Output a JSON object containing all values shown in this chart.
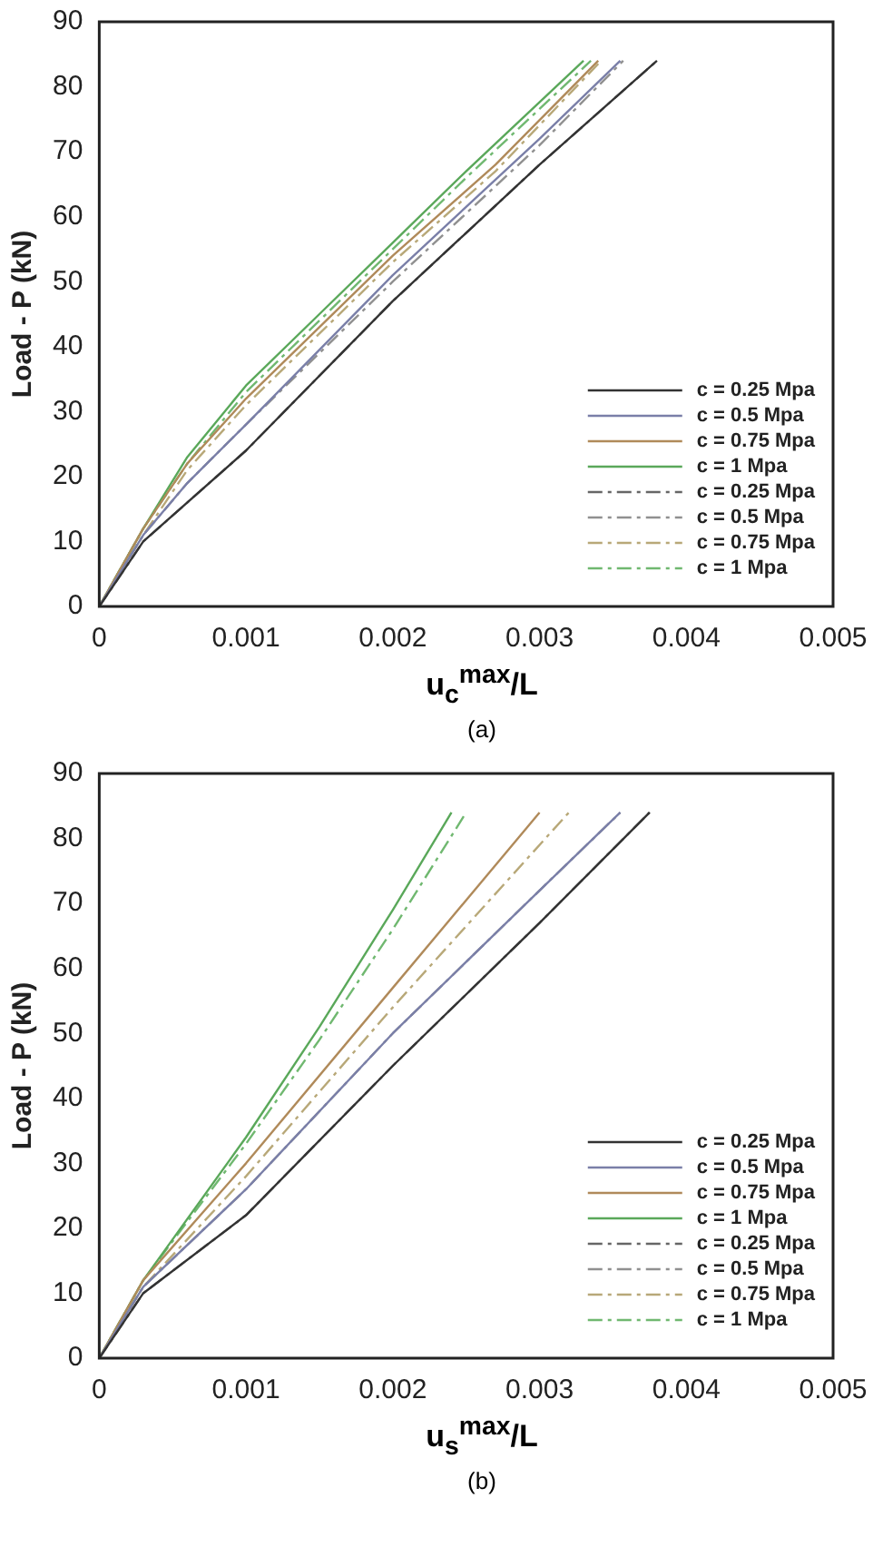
{
  "chart_data": [
    {
      "type": "line",
      "xlabel": "u$_{c}$$^{max}$/L",
      "ylabel": "Load - P (kN)",
      "annotations": [
        "(a)"
      ],
      "xlim": [
        0,
        0.005
      ],
      "ylim": [
        0,
        90
      ],
      "xticks": [
        0,
        0.001,
        0.002,
        0.003,
        0.004,
        0.005
      ],
      "yticks": [
        0,
        10,
        20,
        30,
        40,
        50,
        60,
        70,
        80,
        90
      ],
      "grid": false,
      "legend": "bottom right",
      "marker": "none",
      "series": [
        {
          "name": "c = 0.25 Mpa",
          "color": "#333333",
          "line_style": "solid",
          "x": [
            0,
            0.0003,
            0.001,
            0.002,
            0.003,
            0.0038
          ],
          "values": [
            0,
            10,
            24,
            47,
            68,
            84
          ]
        },
        {
          "name": "c = 0.5 Mpa",
          "color": "#7a7fa8",
          "line_style": "solid",
          "x": [
            0,
            0.0003,
            0.0006,
            0.001,
            0.002,
            0.003,
            0.00355
          ],
          "values": [
            0,
            11,
            19,
            28,
            51,
            72,
            84
          ]
        },
        {
          "name": "c = 0.75 Mpa",
          "color": "#b08a5a",
          "line_style": "solid",
          "x": [
            0,
            0.0003,
            0.0006,
            0.001,
            0.0015,
            0.002,
            0.0027,
            0.0034
          ],
          "values": [
            0,
            12,
            22,
            32,
            43,
            54,
            68,
            84
          ]
        },
        {
          "name": "c = 1 Mpa",
          "color": "#5aa85a",
          "line_style": "solid",
          "x": [
            0,
            0.0003,
            0.0006,
            0.001,
            0.0015,
            0.002,
            0.0025,
            0.0033
          ],
          "values": [
            0,
            12,
            23,
            34,
            45,
            56,
            67,
            84
          ]
        },
        {
          "name": "c = 0.25 Mpa",
          "color": "#666666",
          "line_style": "dashed",
          "x": [
            0,
            0.0003,
            0.001,
            0.002,
            0.003,
            0.0038
          ],
          "values": [
            0,
            10,
            24,
            47,
            68,
            84
          ]
        },
        {
          "name": "c = 0.5 Mpa",
          "color": "#909090",
          "line_style": "dashed",
          "x": [
            0,
            0.0003,
            0.0006,
            0.001,
            0.002,
            0.003,
            0.00357
          ],
          "values": [
            0,
            11,
            19,
            28,
            50,
            71,
            84
          ]
        },
        {
          "name": "c = 0.75 Mpa",
          "color": "#b8a878",
          "line_style": "dashed",
          "x": [
            0,
            0.0003,
            0.0006,
            0.001,
            0.0015,
            0.002,
            0.0027,
            0.00342
          ],
          "values": [
            0,
            11,
            21,
            31,
            42,
            53,
            67,
            84
          ]
        },
        {
          "name": "c = 1 Mpa",
          "color": "#70b870",
          "line_style": "dashed",
          "x": [
            0,
            0.0003,
            0.0006,
            0.001,
            0.0015,
            0.002,
            0.0025,
            0.00335
          ],
          "values": [
            0,
            12,
            22,
            33,
            44,
            55,
            66,
            84
          ]
        }
      ]
    },
    {
      "type": "line",
      "xlabel": "u$_{s}$$^{max}$/L",
      "ylabel": "Load - P (kN)",
      "annotations": [
        "(b)"
      ],
      "xlim": [
        0,
        0.005
      ],
      "ylim": [
        0,
        90
      ],
      "xticks": [
        0,
        0.001,
        0.002,
        0.003,
        0.004,
        0.005
      ],
      "yticks": [
        0,
        10,
        20,
        30,
        40,
        50,
        60,
        70,
        80,
        90
      ],
      "grid": false,
      "legend": "bottom right",
      "marker": "none",
      "series": [
        {
          "name": "c = 0.25 Mpa",
          "color": "#333333",
          "line_style": "solid",
          "x": [
            0,
            0.0003,
            0.001,
            0.002,
            0.003,
            0.00375
          ],
          "values": [
            0,
            10,
            22,
            45,
            67,
            84
          ]
        },
        {
          "name": "c = 0.5 Mpa",
          "color": "#7a7fa8",
          "line_style": "solid",
          "x": [
            0,
            0.0003,
            0.001,
            0.002,
            0.003,
            0.00355
          ],
          "values": [
            0,
            11,
            26,
            50,
            72,
            84
          ]
        },
        {
          "name": "c = 0.75 Mpa",
          "color": "#b08a5a",
          "line_style": "solid",
          "x": [
            0,
            0.0003,
            0.001,
            0.002,
            0.003
          ],
          "values": [
            0,
            12,
            30,
            57,
            84
          ]
        },
        {
          "name": "c = 1 Mpa",
          "color": "#5aa85a",
          "line_style": "solid",
          "x": [
            0,
            0.0003,
            0.001,
            0.0015,
            0.002,
            0.0024
          ],
          "values": [
            0,
            12,
            34,
            51,
            69,
            84
          ]
        },
        {
          "name": "c = 0.25 Mpa",
          "color": "#666666",
          "line_style": "dashed",
          "x": [
            0,
            0.0003,
            0.001,
            0.002,
            0.003,
            0.00375
          ],
          "values": [
            0,
            10,
            22,
            45,
            67,
            84
          ]
        },
        {
          "name": "c = 0.5 Mpa",
          "color": "#909090",
          "line_style": "dashed",
          "x": [
            0,
            0.0003,
            0.001,
            0.002,
            0.003,
            0.00355
          ],
          "values": [
            0,
            11,
            26,
            50,
            72,
            84
          ]
        },
        {
          "name": "c = 0.75 Mpa",
          "color": "#b8a878",
          "line_style": "dashed",
          "x": [
            0,
            0.0003,
            0.001,
            0.002,
            0.0032
          ],
          "values": [
            0,
            11,
            28,
            54,
            84
          ]
        },
        {
          "name": "c = 1 Mpa",
          "color": "#70b870",
          "line_style": "dashed",
          "x": [
            0,
            0.0003,
            0.001,
            0.0015,
            0.002,
            0.0025
          ],
          "values": [
            0,
            12,
            33,
            49,
            66,
            84
          ]
        }
      ]
    }
  ]
}
